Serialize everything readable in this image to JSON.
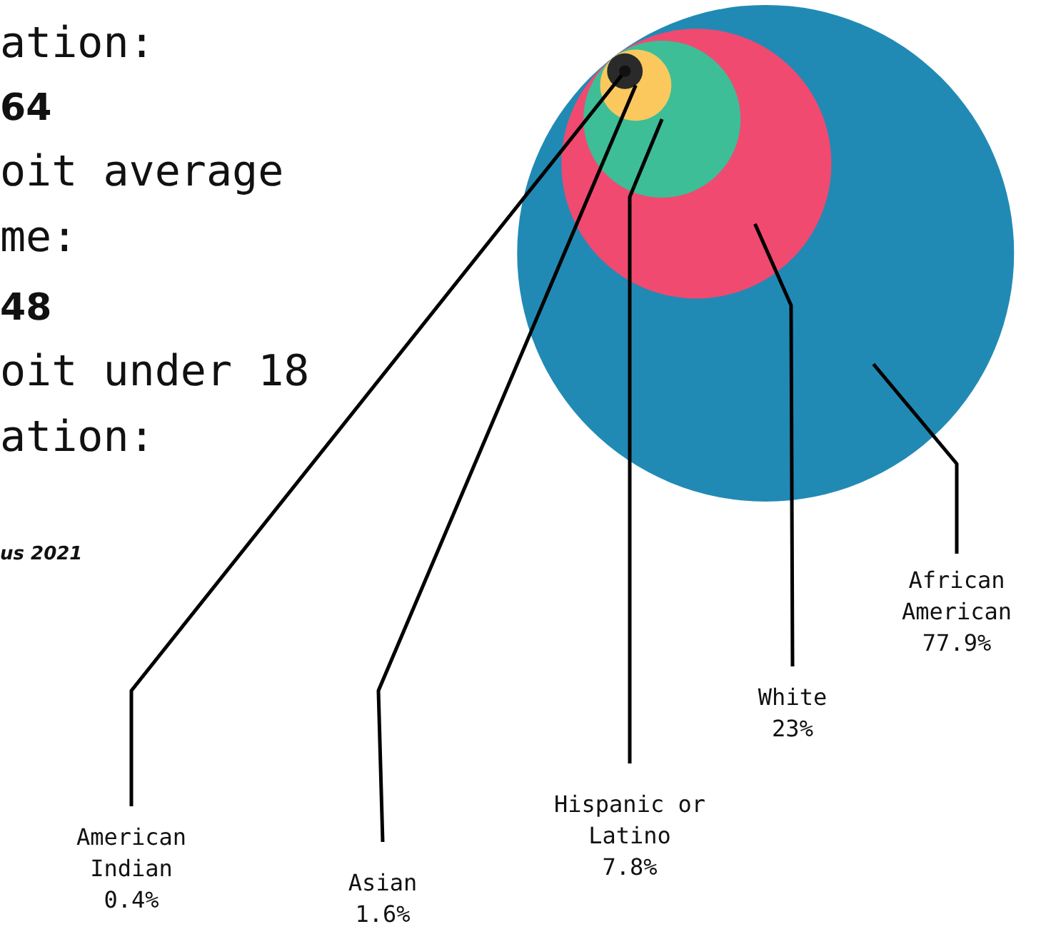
{
  "chart_data": {
    "type": "other",
    "categories": [
      "American Indian",
      "Asian",
      "Hispanic or Latino",
      "White",
      "African American"
    ],
    "values": [
      0.4,
      1.6,
      7.8,
      23,
      77.9
    ],
    "value_labels": [
      "0.4%",
      "1.6%",
      "7.8%",
      "23%",
      "77.9%"
    ],
    "colors": [
      "#2a2a2a",
      "#fbc85e",
      "#3dbe96",
      "#f04a70",
      "#218ab4"
    ],
    "annotations": [
      "ation:",
      "64",
      "oit average",
      "me:",
      "48",
      "oit under 18",
      "ation:",
      "us 2021"
    ]
  }
}
